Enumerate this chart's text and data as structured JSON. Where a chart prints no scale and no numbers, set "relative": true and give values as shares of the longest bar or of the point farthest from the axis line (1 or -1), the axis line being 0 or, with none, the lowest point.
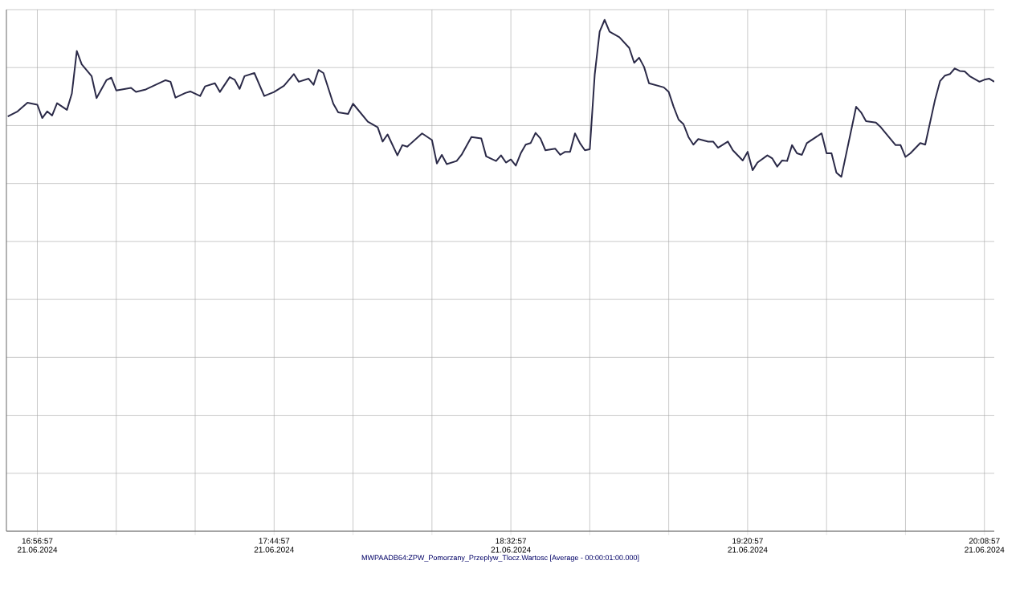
{
  "chart_data": {
    "type": "line",
    "relative": true,
    "grid": true,
    "xlabel": "MWPAADB64:ZPW_Pomorzany_Przeplyw_Tlocz.Wartosc [Average - 00:00:01:00.000]",
    "xlim": [
      "2024-06-21T16:50:41",
      "2024-06-21T20:10:57"
    ],
    "xticks": [
      {
        "value": "2024-06-21T16:56:57",
        "label": "16:56:57 21.06.2024"
      },
      {
        "value": "2024-06-21T17:12:57",
        "label": null
      },
      {
        "value": "2024-06-21T17:28:57",
        "label": null
      },
      {
        "value": "2024-06-21T17:44:57",
        "label": "17:44:57 21.06.2024"
      },
      {
        "value": "2024-06-21T18:00:57",
        "label": null
      },
      {
        "value": "2024-06-21T18:16:57",
        "label": null
      },
      {
        "value": "2024-06-21T18:32:57",
        "label": "18:32:57 21.06.2024"
      },
      {
        "value": "2024-06-21T18:48:57",
        "label": null
      },
      {
        "value": "2024-06-21T19:04:57",
        "label": null
      },
      {
        "value": "2024-06-21T19:20:57",
        "label": "19:20:57 21.06.2024"
      },
      {
        "value": "2024-06-21T19:36:57",
        "label": null
      },
      {
        "value": "2024-06-21T19:52:57",
        "label": null
      },
      {
        "value": "2024-06-21T20:08:57",
        "label": "20:08:57 21.06.2024"
      }
    ],
    "series": [
      {
        "color": "#2b2a48",
        "line_style": "solid",
        "marker": "none",
        "x": [
          "2024-06-21T16:50:57",
          "2024-06-21T16:52:57",
          "2024-06-21T16:54:57",
          "2024-06-21T16:56:57",
          "2024-06-21T16:57:57",
          "2024-06-21T16:58:57",
          "2024-06-21T16:59:57",
          "2024-06-21T17:00:57",
          "2024-06-21T17:02:57",
          "2024-06-21T17:03:57",
          "2024-06-21T17:04:57",
          "2024-06-21T17:05:57",
          "2024-06-21T17:07:57",
          "2024-06-21T17:08:57",
          "2024-06-21T17:10:57",
          "2024-06-21T17:11:57",
          "2024-06-21T17:12:57",
          "2024-06-21T17:15:57",
          "2024-06-21T17:16:57",
          "2024-06-21T17:18:57",
          "2024-06-21T17:20:57",
          "2024-06-21T17:22:57",
          "2024-06-21T17:23:57",
          "2024-06-21T17:24:57",
          "2024-06-21T17:26:57",
          "2024-06-21T17:27:57",
          "2024-06-21T17:29:57",
          "2024-06-21T17:30:57",
          "2024-06-21T17:32:57",
          "2024-06-21T17:33:57",
          "2024-06-21T17:35:57",
          "2024-06-21T17:36:57",
          "2024-06-21T17:37:57",
          "2024-06-21T17:38:57",
          "2024-06-21T17:40:57",
          "2024-06-21T17:42:57",
          "2024-06-21T17:44:57",
          "2024-06-21T17:46:57",
          "2024-06-21T17:48:57",
          "2024-06-21T17:49:57",
          "2024-06-21T17:51:57",
          "2024-06-21T17:52:57",
          "2024-06-21T17:53:57",
          "2024-06-21T17:54:57",
          "2024-06-21T17:56:57",
          "2024-06-21T17:57:57",
          "2024-06-21T17:59:57",
          "2024-06-21T18:00:57",
          "2024-06-21T18:03:57",
          "2024-06-21T18:05:57",
          "2024-06-21T18:06:57",
          "2024-06-21T18:07:57",
          "2024-06-21T18:09:57",
          "2024-06-21T18:10:57",
          "2024-06-21T18:11:57",
          "2024-06-21T18:14:57",
          "2024-06-21T18:16:57",
          "2024-06-21T18:17:57",
          "2024-06-21T18:18:57",
          "2024-06-21T18:19:57",
          "2024-06-21T18:21:57",
          "2024-06-21T18:22:57",
          "2024-06-21T18:24:57",
          "2024-06-21T18:26:57",
          "2024-06-21T18:27:57",
          "2024-06-21T18:29:57",
          "2024-06-21T18:30:57",
          "2024-06-21T18:31:57",
          "2024-06-21T18:32:57",
          "2024-06-21T18:33:57",
          "2024-06-21T18:34:57",
          "2024-06-21T18:35:57",
          "2024-06-21T18:36:57",
          "2024-06-21T18:37:57",
          "2024-06-21T18:38:57",
          "2024-06-21T18:39:57",
          "2024-06-21T18:41:57",
          "2024-06-21T18:42:57",
          "2024-06-21T18:43:57",
          "2024-06-21T18:44:57",
          "2024-06-21T18:45:57",
          "2024-06-21T18:46:57",
          "2024-06-21T18:47:57",
          "2024-06-21T18:48:57",
          "2024-06-21T18:49:57",
          "2024-06-21T18:50:57",
          "2024-06-21T18:51:57",
          "2024-06-21T18:52:57",
          "2024-06-21T18:54:57",
          "2024-06-21T18:56:57",
          "2024-06-21T18:57:57",
          "2024-06-21T18:58:57",
          "2024-06-21T18:59:57",
          "2024-06-21T19:00:57",
          "2024-06-21T19:03:57",
          "2024-06-21T19:04:57",
          "2024-06-21T19:05:57",
          "2024-06-21T19:06:57",
          "2024-06-21T19:07:57",
          "2024-06-21T19:08:57",
          "2024-06-21T19:09:57",
          "2024-06-21T19:10:57",
          "2024-06-21T19:12:57",
          "2024-06-21T19:13:57",
          "2024-06-21T19:14:57",
          "2024-06-21T19:16:57",
          "2024-06-21T19:17:57",
          "2024-06-21T19:19:57",
          "2024-06-21T19:20:57",
          "2024-06-21T19:21:57",
          "2024-06-21T19:22:57",
          "2024-06-21T19:24:57",
          "2024-06-21T19:25:57",
          "2024-06-21T19:26:57",
          "2024-06-21T19:27:57",
          "2024-06-21T19:28:57",
          "2024-06-21T19:29:57",
          "2024-06-21T19:30:57",
          "2024-06-21T19:31:57",
          "2024-06-21T19:32:57",
          "2024-06-21T19:35:57",
          "2024-06-21T19:36:57",
          "2024-06-21T19:37:57",
          "2024-06-21T19:38:57",
          "2024-06-21T19:39:57",
          "2024-06-21T19:42:57",
          "2024-06-21T19:43:57",
          "2024-06-21T19:44:57",
          "2024-06-21T19:46:57",
          "2024-06-21T19:47:57",
          "2024-06-21T19:50:57",
          "2024-06-21T19:51:57",
          "2024-06-21T19:52:57",
          "2024-06-21T19:53:57",
          "2024-06-21T19:55:57",
          "2024-06-21T19:56:57",
          "2024-06-21T19:58:57",
          "2024-06-21T19:59:57",
          "2024-06-21T20:00:57",
          "2024-06-21T20:01:57",
          "2024-06-21T20:02:57",
          "2024-06-21T20:03:57",
          "2024-06-21T20:04:57",
          "2024-06-21T20:05:57",
          "2024-06-21T20:07:57",
          "2024-06-21T20:08:57",
          "2024-06-21T20:09:57",
          "2024-06-21T20:10:57"
        ],
        "values": [
          0.811,
          0.821,
          0.838,
          0.834,
          0.808,
          0.821,
          0.813,
          0.837,
          0.824,
          0.856,
          0.939,
          0.913,
          0.89,
          0.847,
          0.882,
          0.887,
          0.862,
          0.867,
          0.859,
          0.864,
          0.873,
          0.882,
          0.879,
          0.848,
          0.857,
          0.86,
          0.851,
          0.87,
          0.876,
          0.859,
          0.888,
          0.883,
          0.865,
          0.89,
          0.896,
          0.851,
          0.859,
          0.871,
          0.894,
          0.879,
          0.885,
          0.873,
          0.902,
          0.896,
          0.836,
          0.819,
          0.816,
          0.836,
          0.801,
          0.79,
          0.762,
          0.776,
          0.735,
          0.755,
          0.752,
          0.778,
          0.765,
          0.719,
          0.736,
          0.718,
          0.724,
          0.736,
          0.771,
          0.768,
          0.733,
          0.724,
          0.735,
          0.721,
          0.727,
          0.715,
          0.739,
          0.756,
          0.759,
          0.779,
          0.768,
          0.745,
          0.748,
          0.736,
          0.742,
          0.742,
          0.778,
          0.759,
          0.745,
          0.747,
          0.893,
          0.977,
          1.0,
          0.977,
          0.966,
          0.945,
          0.916,
          0.926,
          0.908,
          0.876,
          0.868,
          0.859,
          0.83,
          0.805,
          0.796,
          0.771,
          0.756,
          0.767,
          0.762,
          0.762,
          0.75,
          0.762,
          0.745,
          0.725,
          0.742,
          0.706,
          0.721,
          0.735,
          0.729,
          0.713,
          0.725,
          0.724,
          0.755,
          0.739,
          0.736,
          0.759,
          0.778,
          0.739,
          0.739,
          0.701,
          0.693,
          0.83,
          0.819,
          0.802,
          0.799,
          0.79,
          0.755,
          0.755,
          0.732,
          0.739,
          0.759,
          0.756,
          0.844,
          0.88,
          0.891,
          0.894,
          0.905,
          0.9,
          0.899,
          0.89,
          0.879,
          0.883,
          0.885,
          0.879
        ]
      }
    ]
  }
}
